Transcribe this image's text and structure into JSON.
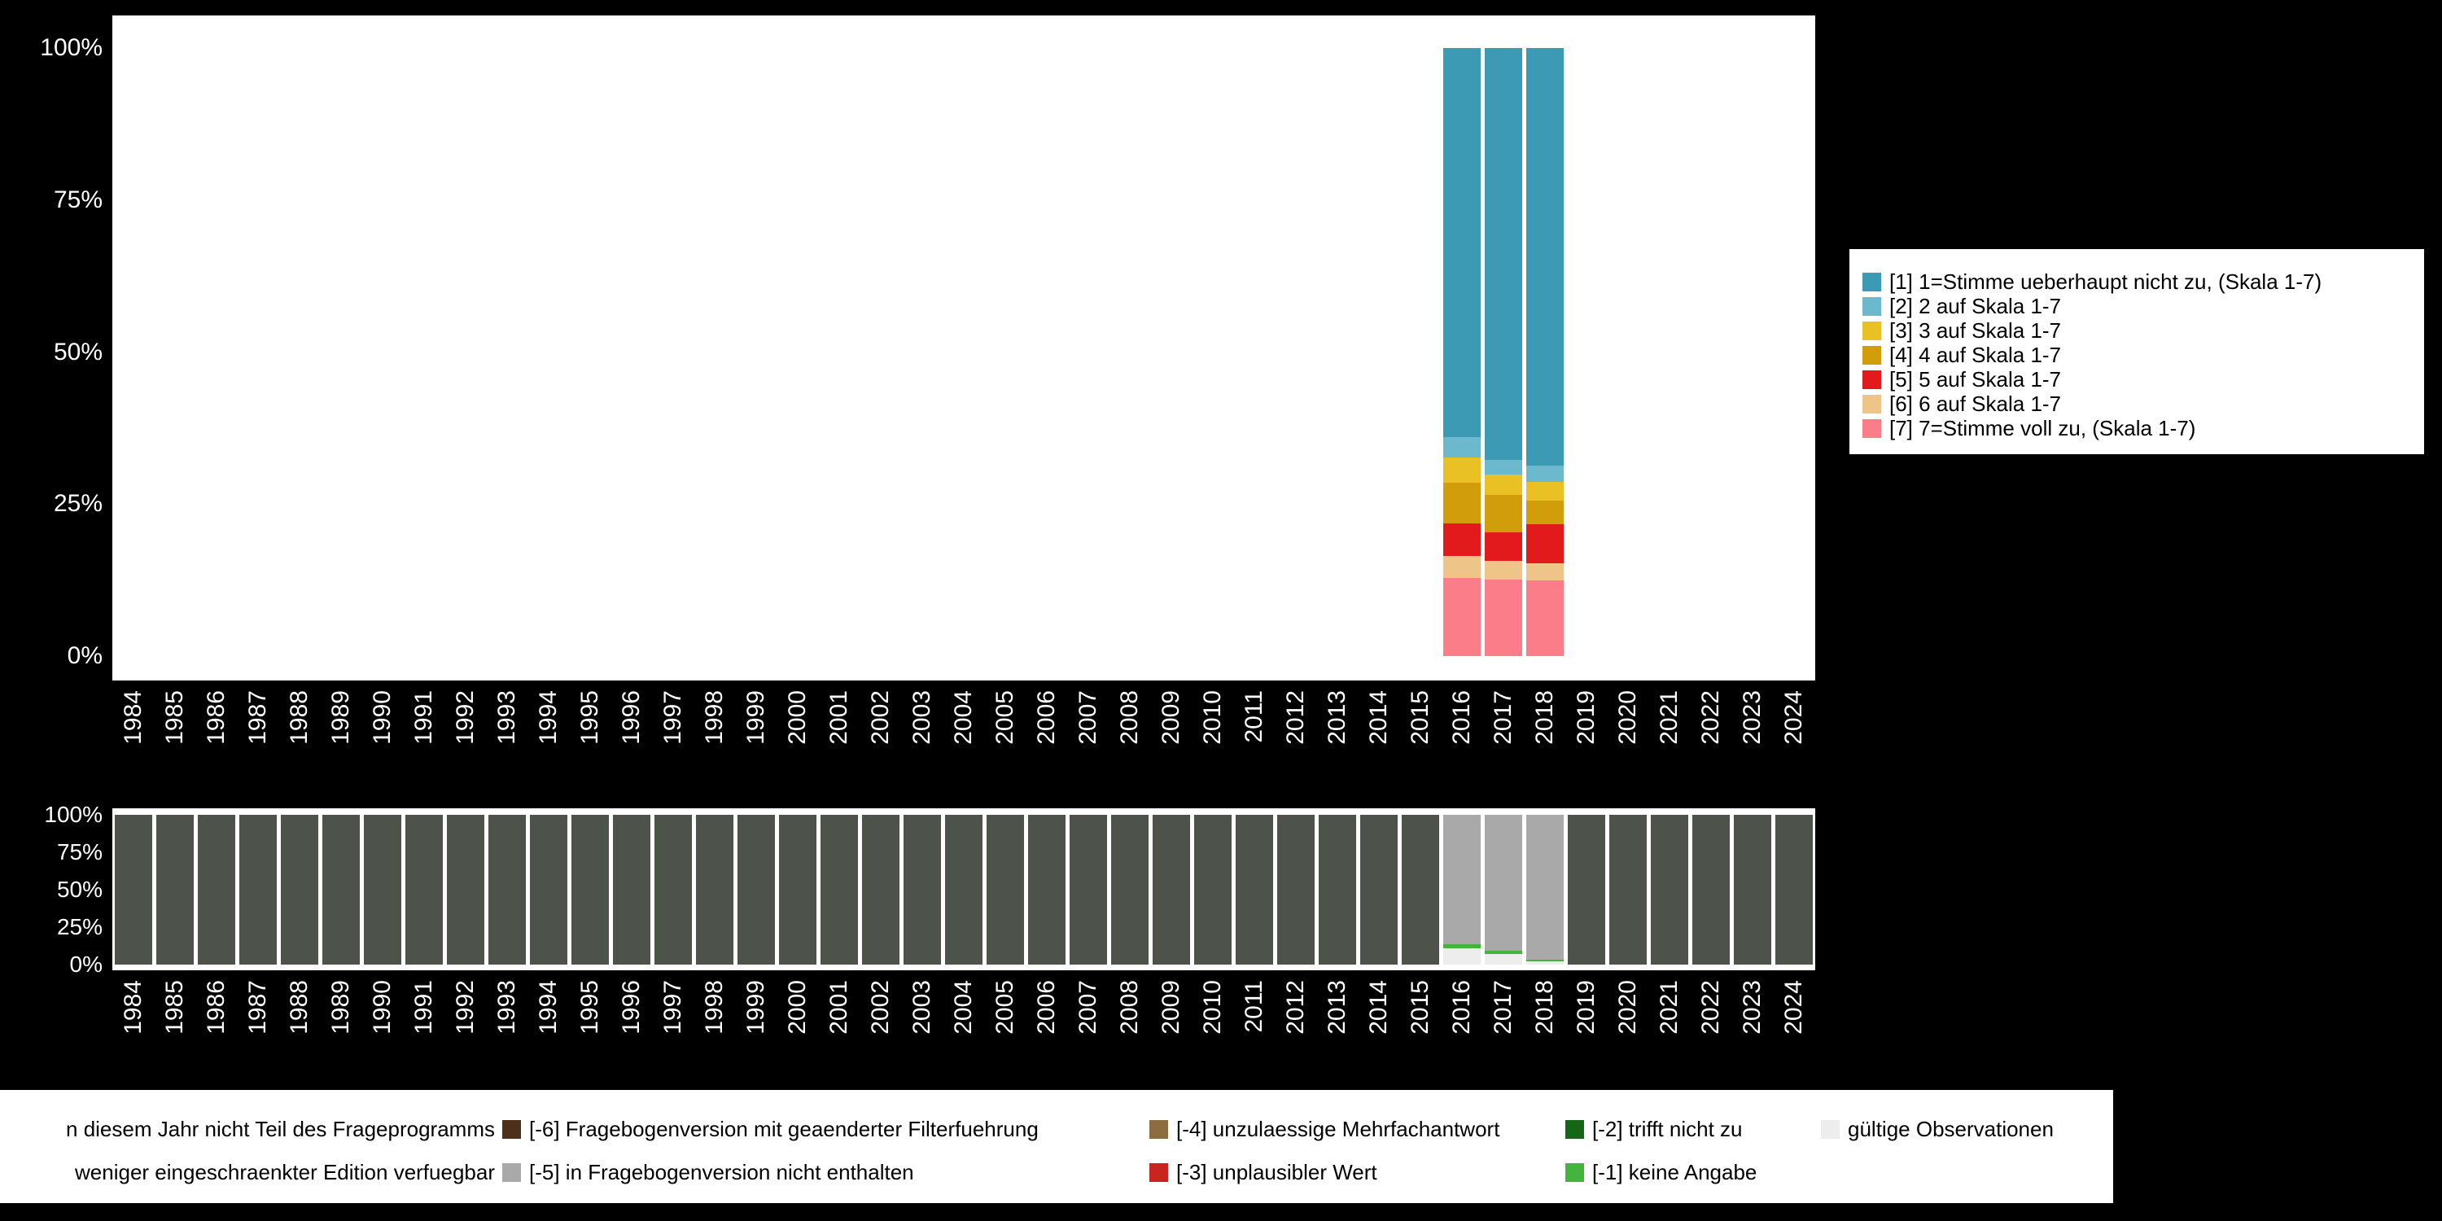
{
  "meta": {
    "background": "#000000",
    "panel_background": "#ffffff",
    "axis_text_color": "#ffffff",
    "legend_text_color": "#000000"
  },
  "axis": {
    "y_ticks": [
      "100%",
      "75%",
      "50%",
      "25%",
      "0%"
    ]
  },
  "chart_data": [
    {
      "name": "responses",
      "type": "bar",
      "stacked": true,
      "unit": "percent",
      "ylim": [
        0,
        100
      ],
      "y_ticks": [
        "100%",
        "75%",
        "50%",
        "25%",
        "0%"
      ],
      "legend_position": "right",
      "categories": [
        "1984",
        "1985",
        "1986",
        "1987",
        "1988",
        "1989",
        "1990",
        "1991",
        "1992",
        "1993",
        "1994",
        "1995",
        "1996",
        "1997",
        "1998",
        "1999",
        "2000",
        "2001",
        "2002",
        "2003",
        "2004",
        "2005",
        "2006",
        "2007",
        "2008",
        "2009",
        "2010",
        "2011",
        "2012",
        "2013",
        "2014",
        "2015",
        "2016",
        "2017",
        "2018",
        "2019",
        "2020",
        "2021",
        "2022",
        "2023",
        "2024"
      ],
      "series_note": "series listed bottom-to-top of stack; years without values have no bar",
      "series": [
        {
          "key": "7",
          "label": "[7] 7=Stimme voll zu, (Skala 1-7)",
          "color": "#fb7d8a",
          "values_by_year": {
            "2016": 12.9,
            "2017": 12.6,
            "2018": 12.4
          }
        },
        {
          "key": "6",
          "label": "[6] 6 auf Skala 1-7",
          "color": "#eec488",
          "values_by_year": {
            "2016": 3.5,
            "2017": 3.1,
            "2018": 2.9
          }
        },
        {
          "key": "5",
          "label": "[5] 5 auf Skala 1-7",
          "color": "#e31a1c",
          "values_by_year": {
            "2016": 5.4,
            "2017": 4.6,
            "2018": 6.4
          }
        },
        {
          "key": "4",
          "label": "[4] 4 auf Skala 1-7",
          "color": "#d19d0b",
          "values_by_year": {
            "2016": 6.7,
            "2017": 6.2,
            "2018": 3.9
          }
        },
        {
          "key": "3",
          "label": "[3] 3 auf Skala 1-7",
          "color": "#eac124",
          "values_by_year": {
            "2016": 4.1,
            "2017": 3.4,
            "2018": 3.1
          }
        },
        {
          "key": "2",
          "label": "[2] 2 auf Skala 1-7",
          "color": "#6cb9ce",
          "values_by_year": {
            "2016": 3.4,
            "2017": 2.3,
            "2018": 2.6
          }
        },
        {
          "key": "1",
          "label": "[1] 1=Stimme ueberhaupt nicht zu, (Skala 1-7)",
          "color": "#3d9ab5",
          "values_by_year": {
            "2016": 64.0,
            "2017": 67.8,
            "2018": 68.7
          }
        }
      ]
    },
    {
      "name": "missings",
      "type": "bar",
      "stacked": true,
      "unit": "percent",
      "ylim": [
        0,
        100
      ],
      "y_ticks": [
        "100%",
        "75%",
        "50%",
        "25%",
        "0%"
      ],
      "legend_position": "bottom",
      "categories": [
        "1984",
        "1985",
        "1986",
        "1987",
        "1988",
        "1989",
        "1990",
        "1991",
        "1992",
        "1993",
        "1994",
        "1995",
        "1996",
        "1997",
        "1998",
        "1999",
        "2000",
        "2001",
        "2002",
        "2003",
        "2004",
        "2005",
        "2006",
        "2007",
        "2008",
        "2009",
        "2010",
        "2011",
        "2012",
        "2013",
        "2014",
        "2015",
        "2016",
        "2017",
        "2018",
        "2019",
        "2020",
        "2021",
        "2022",
        "2023",
        "2024"
      ],
      "series_note": "series listed bottom-to-top of stack; default applies to all years not listed in values_by_year",
      "series": [
        {
          "key": "valid",
          "label": "gültige Observationen",
          "color": "#ededed",
          "default": 0,
          "values_by_year": {
            "2016": 11,
            "2017": 7,
            "2018": 2
          }
        },
        {
          "key": "-1",
          "label": "[-1] keine Angabe",
          "color": "#43b53c",
          "default": 0,
          "values_by_year": {
            "2016": 2.5,
            "2017": 2.5,
            "2018": 1.5
          }
        },
        {
          "key": "-5",
          "label": "[-5] in Fragebogenversion nicht enthalten",
          "color": "#a9a9a9",
          "default": 0,
          "values_by_year": {
            "2016": 86.5,
            "2017": 90.5,
            "2018": 96.5
          }
        },
        {
          "key": "not-asked",
          "label": "in diesem Jahr nicht Teil des Frageprogramms",
          "color": "#4d534b",
          "default": 100,
          "values_by_year": {
            "2016": 0,
            "2017": 0,
            "2018": 0
          }
        }
      ]
    }
  ],
  "legend_bottom": {
    "rows": [
      [
        {
          "label": "n diesem Jahr nicht Teil des Frageprogramms",
          "color": "#4d534b",
          "swatch": false
        },
        {
          "label": "[-6] Fragebogenversion mit geaenderter Filterfuehrung",
          "color": "#4d2f1a",
          "swatch": true
        },
        {
          "label": "[-4] unzulaessige Mehrfachantwort",
          "color": "#8b6d3f",
          "swatch": true
        },
        {
          "label": "[-2] trifft nicht zu",
          "color": "#156615",
          "swatch": true
        },
        {
          "label": "gültige Observationen",
          "color": "#ededed",
          "swatch": true
        }
      ],
      [
        {
          "label": "weniger eingeschraenkter Edition verfuegbar",
          "color": "#8c8c8c",
          "swatch": false
        },
        {
          "label": "[-5] in Fragebogenversion nicht enthalten",
          "color": "#a9a9a9",
          "swatch": true
        },
        {
          "label": "[-3] unplausibler Wert",
          "color": "#c9241e",
          "swatch": true
        },
        {
          "label": "[-1] keine Angabe",
          "color": "#43b53c",
          "swatch": true
        }
      ]
    ]
  }
}
